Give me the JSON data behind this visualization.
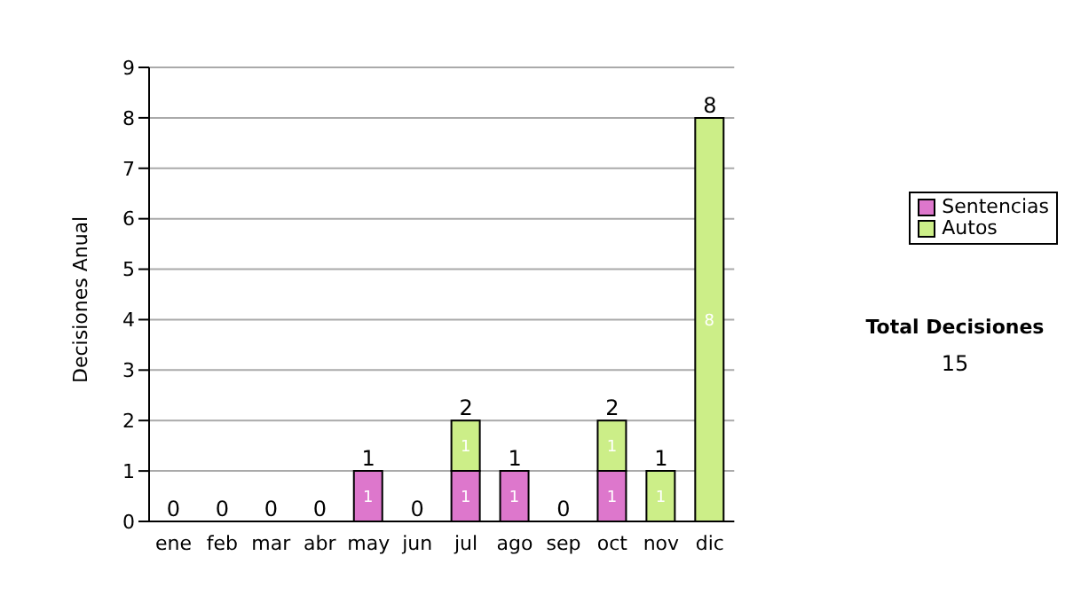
{
  "chart_data": {
    "type": "bar",
    "stacked": true,
    "ylabel": "Decisiones Anual",
    "categories": [
      "ene",
      "feb",
      "mar",
      "abr",
      "may",
      "jun",
      "jul",
      "ago",
      "sep",
      "oct",
      "nov",
      "dic"
    ],
    "series": [
      {
        "name": "Sentencias",
        "color": "#dd77cc",
        "values": [
          null,
          null,
          null,
          null,
          1,
          null,
          1,
          1,
          null,
          1,
          null,
          null
        ]
      },
      {
        "name": "Autos",
        "color": "#ccee88",
        "values": [
          null,
          null,
          null,
          null,
          null,
          null,
          1,
          null,
          null,
          1,
          1,
          8
        ]
      }
    ],
    "totals": [
      "0",
      "0",
      "0",
      "0",
      "1",
      "0",
      "2",
      "1",
      "0",
      "2",
      "1",
      "8"
    ],
    "data_labels": true,
    "ylim": [
      0,
      9
    ],
    "yticks": [
      0,
      1,
      2,
      3,
      4,
      5,
      6,
      7,
      8,
      9
    ],
    "grid": "y",
    "legend": "right",
    "annotations": [
      "Total Decisiones",
      "15"
    ]
  }
}
